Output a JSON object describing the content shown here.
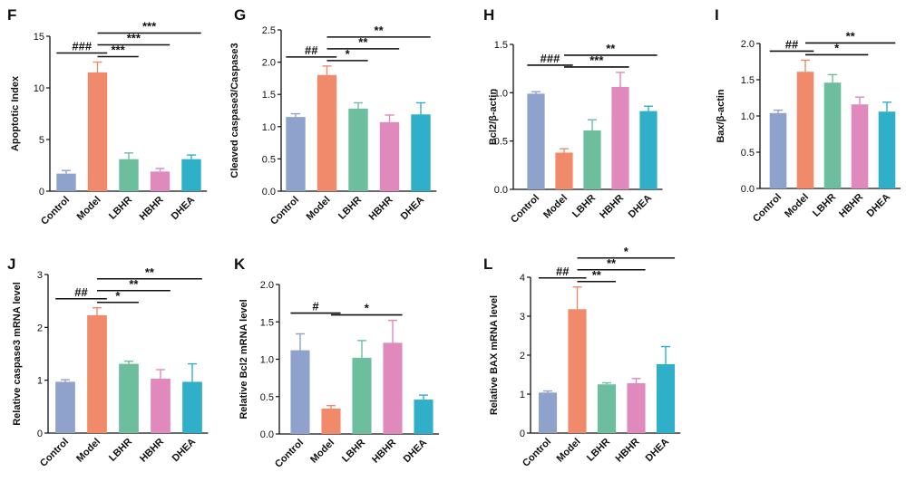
{
  "categories": [
    "Control",
    "Model",
    "LBHR",
    "HBHR",
    "DHEA"
  ],
  "colors": {
    "Control": "#8ea2cc",
    "Model": "#f08a6a",
    "LBHR": "#6dbd9f",
    "HBHR": "#e089bd",
    "DHEA": "#2fb0c8"
  },
  "chart_data": [
    {
      "panel": "F",
      "type": "bar",
      "ylabel": "Apoptotic Index",
      "ylim": [
        0,
        15
      ],
      "yticks": [
        "0",
        "5",
        "10",
        "15"
      ],
      "categories": [
        "Control",
        "Model",
        "LBHR",
        "HBHR",
        "DHEA"
      ],
      "values": [
        1.7,
        11.5,
        3.1,
        1.9,
        3.1
      ],
      "errors": [
        0.3,
        1.0,
        0.6,
        0.3,
        0.4
      ],
      "annotations": [
        {
          "from": "Control",
          "to": "Model",
          "label": "###"
        },
        {
          "from": "Model",
          "to": "LBHR",
          "label": "***"
        },
        {
          "from": "Model",
          "to": "HBHR",
          "label": "***"
        },
        {
          "from": "Model",
          "to": "DHEA",
          "label": "***"
        }
      ]
    },
    {
      "panel": "G",
      "type": "bar",
      "ylabel": "Cleaved caspase3/Caspase3",
      "ylim": [
        0,
        2.5
      ],
      "yticks": [
        "0.0",
        "0.5",
        "1.0",
        "1.5",
        "2.0",
        "2.5"
      ],
      "categories": [
        "Control",
        "Model",
        "LBHR",
        "HBHR",
        "DHEA"
      ],
      "values": [
        1.15,
        1.8,
        1.28,
        1.07,
        1.19
      ],
      "errors": [
        0.05,
        0.14,
        0.09,
        0.11,
        0.18
      ],
      "annotations": [
        {
          "from": "Control",
          "to": "Model",
          "label": "##"
        },
        {
          "from": "Model",
          "to": "LBHR",
          "label": "*"
        },
        {
          "from": "Model",
          "to": "HBHR",
          "label": "**"
        },
        {
          "from": "Model",
          "to": "DHEA",
          "label": "**"
        }
      ]
    },
    {
      "panel": "H",
      "type": "bar",
      "ylabel": "Bcl2/β-actin",
      "ylim": [
        0,
        1.5
      ],
      "yticks": [
        "0.0",
        "0.5",
        "1.0",
        "1.5"
      ],
      "categories": [
        "Control",
        "Model",
        "LBHR",
        "HBHR",
        "DHEA"
      ],
      "values": [
        0.99,
        0.38,
        0.61,
        1.06,
        0.81
      ],
      "errors": [
        0.02,
        0.04,
        0.11,
        0.15,
        0.05
      ],
      "annotations": [
        {
          "from": "Control",
          "to": "Model",
          "label": "###"
        },
        {
          "from": "Model",
          "to": "HBHR",
          "label": "***"
        },
        {
          "from": "Model",
          "to": "DHEA",
          "label": "**"
        }
      ]
    },
    {
      "panel": "I",
      "type": "bar",
      "ylabel": "Bax/β-actin",
      "ylim": [
        0,
        2.0
      ],
      "yticks": [
        "0.0",
        "0.5",
        "1.0",
        "1.5",
        "2.0"
      ],
      "categories": [
        "Control",
        "Model",
        "LBHR",
        "HBHR",
        "DHEA"
      ],
      "values": [
        1.04,
        1.61,
        1.46,
        1.16,
        1.06
      ],
      "errors": [
        0.04,
        0.16,
        0.11,
        0.1,
        0.13
      ],
      "annotations": [
        {
          "from": "Control",
          "to": "Model",
          "label": "##"
        },
        {
          "from": "Model",
          "to": "HBHR",
          "label": "*"
        },
        {
          "from": "Model",
          "to": "DHEA",
          "label": "**"
        }
      ]
    },
    {
      "panel": "J",
      "type": "bar",
      "ylabel": "Relative caspase3 mRNA level",
      "ylim": [
        0,
        3
      ],
      "yticks": [
        "0",
        "1",
        "2",
        "3"
      ],
      "categories": [
        "Control",
        "Model",
        "LBHR",
        "HBHR",
        "DHEA"
      ],
      "values": [
        0.97,
        2.23,
        1.31,
        1.03,
        0.97
      ],
      "errors": [
        0.04,
        0.14,
        0.05,
        0.17,
        0.34
      ],
      "annotations": [
        {
          "from": "Control",
          "to": "Model",
          "label": "##"
        },
        {
          "from": "Model",
          "to": "LBHR",
          "label": "*"
        },
        {
          "from": "Model",
          "to": "HBHR",
          "label": "**"
        },
        {
          "from": "Model",
          "to": "DHEA",
          "label": "**"
        }
      ]
    },
    {
      "panel": "K",
      "type": "bar",
      "ylabel": "Relative Bcl2 mRNA level",
      "ylim": [
        0,
        2.0
      ],
      "yticks": [
        "0.0",
        "0.5",
        "1.0",
        "1.5",
        "2.0"
      ],
      "categories": [
        "Control",
        "Model",
        "LBHR",
        "HBHR",
        "DHEA"
      ],
      "values": [
        1.12,
        0.34,
        1.02,
        1.22,
        0.46
      ],
      "errors": [
        0.22,
        0.04,
        0.23,
        0.3,
        0.06
      ],
      "annotations": [
        {
          "from": "Control",
          "to": "Model",
          "label": "#"
        },
        {
          "from": "Model",
          "to": "HBHR",
          "label": "*"
        }
      ]
    },
    {
      "panel": "L",
      "type": "bar",
      "ylabel": "Relative BAX mRNA level",
      "ylim": [
        0,
        4
      ],
      "yticks": [
        "0",
        "1",
        "2",
        "3",
        "4"
      ],
      "categories": [
        "Control",
        "Model",
        "LBHR",
        "HBHR",
        "DHEA"
      ],
      "values": [
        1.04,
        3.18,
        1.25,
        1.28,
        1.77
      ],
      "errors": [
        0.04,
        0.57,
        0.04,
        0.12,
        0.45
      ],
      "annotations": [
        {
          "from": "Control",
          "to": "Model",
          "label": "##"
        },
        {
          "from": "Model",
          "to": "LBHR",
          "label": "**"
        },
        {
          "from": "Model",
          "to": "HBHR",
          "label": "**"
        },
        {
          "from": "Model",
          "to": "DHEA",
          "label": "*"
        }
      ]
    }
  ]
}
